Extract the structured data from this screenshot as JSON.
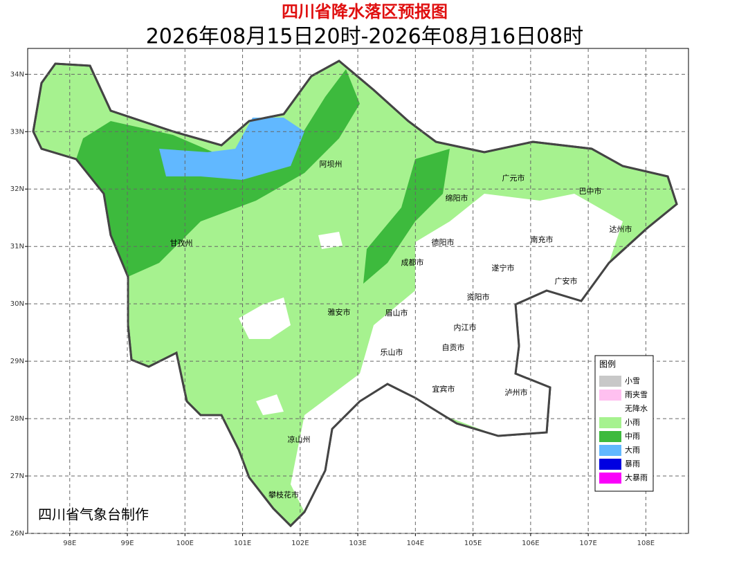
{
  "title": "四川省降水落区预报图",
  "subtitle": "2026年08月15日20时-2026年08月16日08时",
  "credit": "四川省气象台制作",
  "map": {
    "lonlim": [
      97.27,
      108.74
    ],
    "latlim": [
      26,
      34.45
    ],
    "grid": true,
    "lon_ticks": [
      {
        "value": 98,
        "label": "98E"
      },
      {
        "value": 99,
        "label": "99E"
      },
      {
        "value": 100,
        "label": "100E"
      },
      {
        "value": 101,
        "label": "101E"
      },
      {
        "value": 102,
        "label": "102E"
      },
      {
        "value": 103,
        "label": "103E"
      },
      {
        "value": 104,
        "label": "104E"
      },
      {
        "value": 105,
        "label": "105E"
      },
      {
        "value": 106,
        "label": "106E"
      },
      {
        "value": 107,
        "label": "107E"
      },
      {
        "value": 108,
        "label": "108E"
      }
    ],
    "lat_ticks": [
      {
        "value": 26,
        "label": "26N"
      },
      {
        "value": 27,
        "label": "27N"
      },
      {
        "value": 28,
        "label": "28N"
      },
      {
        "value": 29,
        "label": "29N"
      },
      {
        "value": 30,
        "label": "30N"
      },
      {
        "value": 31,
        "label": "31N"
      },
      {
        "value": 32,
        "label": "32N"
      },
      {
        "value": 33,
        "label": "33N"
      },
      {
        "value": 34,
        "label": "34N"
      }
    ]
  },
  "cities": [
    "阿坝州",
    "广元市",
    "巴中市",
    "绵阳市",
    "达州市",
    "甘孜州",
    "德阳市",
    "南充市",
    "成都市",
    "遂宁市",
    "广安市",
    "资阳市",
    "雅安市",
    "眉山市",
    "内江市",
    "自贡市",
    "乐山市",
    "宜宾市",
    "泸州市",
    "凉山州",
    "攀枝花市"
  ],
  "legend": {
    "title": "图例",
    "items": [
      {
        "label": "小雪",
        "color": "#c8c8c8"
      },
      {
        "label": "雨夹雪",
        "color": "#ffc0f0"
      },
      {
        "label": "无降水",
        "color": "#ffffff"
      },
      {
        "label": "小雨",
        "color": "#a6f28f"
      },
      {
        "label": "中雨",
        "color": "#3dba3d"
      },
      {
        "label": "大雨",
        "color": "#61b8ff"
      },
      {
        "label": "暴雨",
        "color": "#0000e1"
      },
      {
        "label": "大暴雨",
        "color": "#fa00fa"
      }
    ]
  }
}
